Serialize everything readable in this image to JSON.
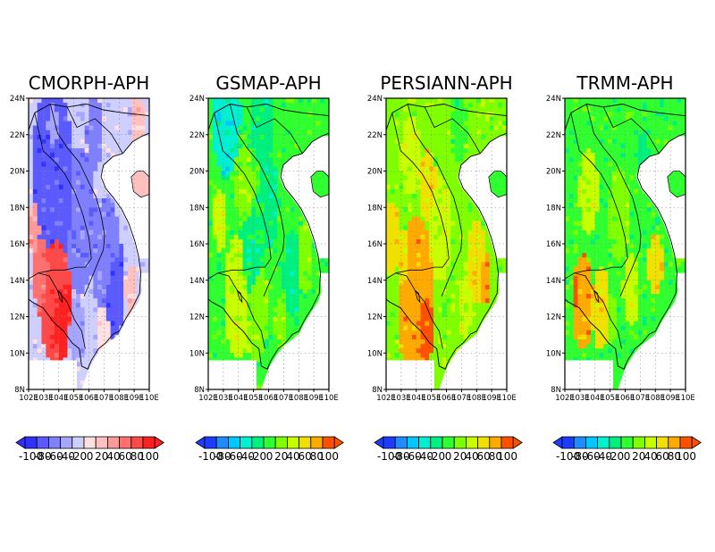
{
  "figure": {
    "panels": [
      {
        "title": "CMORPH-APH",
        "palette": [
          "#3030ff",
          "#5a5aff",
          "#8080ff",
          "#a6a6ff",
          "#cfcfff",
          "#ffe0e0",
          "#ffc0c0",
          "#ff9a9a",
          "#ff7070",
          "#ff4848",
          "#ff2020"
        ],
        "colorbar_labels": [
          "-100",
          "-80",
          "-60",
          "-40",
          "-20",
          "0",
          "20",
          "40",
          "60",
          "80",
          "100"
        ]
      },
      {
        "title": "GSMAP-APH",
        "palette": [
          "#1e3cff",
          "#1e8cff",
          "#00c8ff",
          "#00f0d0",
          "#00f080",
          "#30ff30",
          "#80ff00",
          "#c8ff00",
          "#f0e000",
          "#ffaa00",
          "#ff5000"
        ],
        "colorbar_labels": [
          "-100",
          "-80",
          "-60",
          "-40",
          "-20",
          "0",
          "20",
          "40",
          "60",
          "80",
          "100"
        ]
      },
      {
        "title": "PERSIANN-APH",
        "palette": [
          "#1e3cff",
          "#1e8cff",
          "#00c8ff",
          "#00f0d0",
          "#00f080",
          "#30ff30",
          "#80ff00",
          "#c8ff00",
          "#f0e000",
          "#ffaa00",
          "#ff5000"
        ],
        "colorbar_labels": [
          "-100",
          "-80",
          "-60",
          "-40",
          "-20",
          "0",
          "20",
          "40",
          "60",
          "80",
          "100"
        ]
      },
      {
        "title": "TRMM-APH",
        "palette": [
          "#1e3cff",
          "#1e8cff",
          "#00c8ff",
          "#00f0d0",
          "#00f080",
          "#30ff30",
          "#80ff00",
          "#c8ff00",
          "#f0e000",
          "#ffaa00",
          "#ff5000"
        ],
        "colorbar_labels": [
          "-100",
          "-80",
          "-60",
          "-40",
          "-20",
          "0",
          "20",
          "40",
          "60",
          "80",
          "100"
        ]
      }
    ],
    "lat_ticks": [
      "8N",
      "10N",
      "12N",
      "14N",
      "16N",
      "18N",
      "20N",
      "22N",
      "24N"
    ],
    "lon_ticks": [
      "102E",
      "103E",
      "104E",
      "105E",
      "106E",
      "107E",
      "108E",
      "109E",
      "110E"
    ]
  }
}
